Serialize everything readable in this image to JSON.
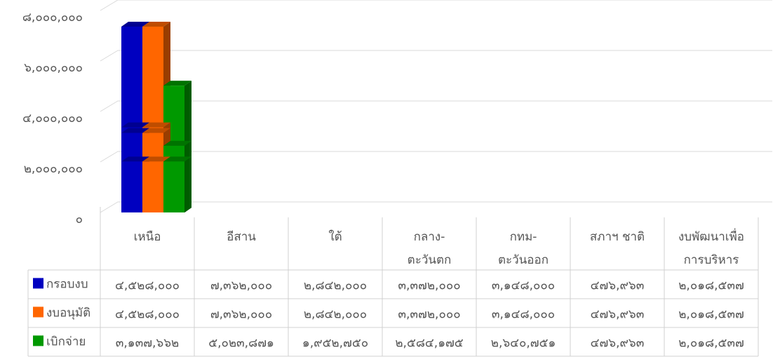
{
  "chart_data": {
    "type": "bar3d",
    "categories": [
      "เหนือ",
      "อีสาน",
      "ใต้",
      "กลาง-\nตะวันตก",
      "กทม-\nตะวันออก",
      "สภาฯ ชาติ",
      "งบพัฒนาเพื่อ\nการบริหาร"
    ],
    "series": [
      {
        "name": "กรอบงบ",
        "color": "#0000c0",
        "values": [
          4528000,
          7362000,
          2842000,
          3372000,
          3148000,
          476963,
          2018537
        ],
        "value_labels": [
          "๔,๕๒๘,๐๐๐",
          "๗,๓๖๒,๐๐๐",
          "๒,๘๔๒,๐๐๐",
          "๓,๓๗๒,๐๐๐",
          "๓,๑๔๘,๐๐๐",
          "๔๗๖,๙๖๓",
          "๒,๐๑๘,๕๓๗"
        ]
      },
      {
        "name": "งบอนุมัติ",
        "color": "#ff6600",
        "values": [
          4528000,
          7362000,
          2842000,
          3372000,
          3148000,
          476963,
          2018537
        ],
        "value_labels": [
          "๔,๕๒๘,๐๐๐",
          "๗,๓๖๒,๐๐๐",
          "๒,๘๔๒,๐๐๐",
          "๓,๓๗๒,๐๐๐",
          "๓,๑๔๘,๐๐๐",
          "๔๗๖,๙๖๓",
          "๒,๐๑๘,๕๓๗"
        ]
      },
      {
        "name": "เบิกจ่าย",
        "color": "#009900",
        "values": [
          3137662,
          5023871,
          1952750,
          2584175,
          2640751,
          476963,
          2018537
        ],
        "value_labels": [
          "๓,๑๓๗,๖๖๒",
          "๕,๐๒๓,๘๗๑",
          "๑,๙๕๒,๗๕๐",
          "๒,๕๘๔,๑๗๕",
          "๒,๖๔๐,๗๕๑",
          "๔๗๖,๙๖๓",
          "๒,๐๑๘,๕๓๗"
        ]
      }
    ],
    "ylim": [
      0,
      8000000
    ],
    "yticks": [
      {
        "value": 0,
        "label": "๐"
      },
      {
        "value": 2000000,
        "label": "๒,๐๐๐,๐๐๐"
      },
      {
        "value": 4000000,
        "label": "๔,๐๐๐,๐๐๐"
      },
      {
        "value": 6000000,
        "label": "๖,๐๐๐,๐๐๐"
      },
      {
        "value": 8000000,
        "label": "๘,๐๐๐,๐๐๐"
      }
    ],
    "grid": true
  }
}
